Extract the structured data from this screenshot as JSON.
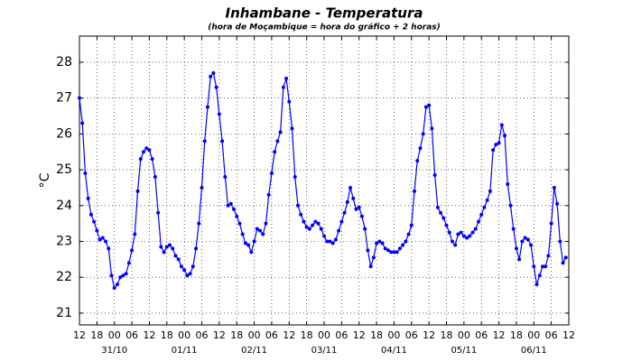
{
  "chart_data": {
    "type": "line",
    "title": "Inhambane - Temperatura",
    "subtitle": "(hora de Moçambique = hora do gráfico + 2 horas)",
    "y_label": "°C",
    "color": "#0000ff",
    "grid": true,
    "x": [
      0,
      1,
      2,
      3,
      4,
      5,
      6,
      7,
      8,
      9,
      10,
      11,
      12,
      13,
      14,
      15,
      16,
      17,
      18,
      19,
      20,
      21,
      22,
      23,
      24,
      25,
      26,
      27,
      28,
      29,
      30,
      31,
      32,
      33,
      34,
      35,
      36,
      37,
      38,
      39,
      40,
      41,
      42,
      43,
      44,
      45,
      46,
      47,
      48,
      49,
      50,
      51,
      52,
      53,
      54,
      55,
      56,
      57,
      58,
      59,
      60,
      61,
      62,
      63,
      64,
      65,
      66,
      67,
      68,
      69,
      70,
      71,
      72,
      73,
      74,
      75,
      76,
      77,
      78,
      79,
      80,
      81,
      82,
      83,
      84,
      85,
      86,
      87,
      88,
      89,
      90,
      91,
      92,
      93,
      94,
      95,
      96,
      97,
      98,
      99,
      100,
      101,
      102,
      103,
      104,
      105,
      106,
      107,
      108,
      109,
      110,
      111,
      112,
      113,
      114,
      115,
      116,
      117,
      118,
      119,
      120,
      121,
      122,
      123,
      124,
      125,
      126,
      127,
      128,
      129,
      130,
      131,
      132,
      133,
      134,
      135,
      136,
      137,
      138,
      139,
      140,
      141,
      142,
      143,
      144,
      145,
      146,
      147,
      148,
      149,
      150,
      151,
      152,
      153,
      154,
      155,
      156,
      157,
      158,
      159,
      160,
      161,
      162,
      163,
      164,
      165,
      166,
      167
    ],
    "values": [
      27.0,
      26.3,
      24.9,
      24.2,
      23.75,
      23.55,
      23.3,
      23.05,
      23.1,
      23.0,
      22.8,
      22.05,
      21.7,
      21.8,
      22.0,
      22.05,
      22.1,
      22.4,
      22.75,
      23.2,
      24.4,
      25.3,
      25.5,
      25.6,
      25.55,
      25.3,
      24.8,
      23.8,
      22.85,
      22.7,
      22.85,
      22.9,
      22.8,
      22.6,
      22.5,
      22.3,
      22.2,
      22.05,
      22.1,
      22.3,
      22.8,
      23.5,
      24.5,
      25.8,
      26.75,
      27.6,
      27.7,
      27.3,
      26.55,
      25.8,
      24.8,
      24.0,
      24.05,
      23.9,
      23.7,
      23.5,
      23.2,
      22.95,
      22.9,
      22.7,
      23.0,
      23.35,
      23.3,
      23.2,
      23.5,
      24.3,
      24.9,
      25.5,
      25.8,
      26.05,
      27.3,
      27.55,
      26.9,
      26.15,
      24.8,
      24.0,
      23.75,
      23.55,
      23.4,
      23.35,
      23.45,
      23.55,
      23.5,
      23.35,
      23.15,
      23.0,
      23.0,
      22.95,
      23.05,
      23.3,
      23.55,
      23.8,
      24.1,
      24.5,
      24.2,
      23.9,
      23.95,
      23.7,
      23.35,
      22.75,
      22.3,
      22.55,
      22.95,
      23.0,
      22.95,
      22.8,
      22.75,
      22.7,
      22.7,
      22.7,
      22.8,
      22.9,
      23.0,
      23.2,
      23.45,
      24.4,
      25.25,
      25.6,
      26.0,
      26.75,
      26.8,
      26.15,
      24.85,
      23.95,
      23.8,
      23.65,
      23.45,
      23.25,
      23.0,
      22.9,
      23.2,
      23.25,
      23.15,
      23.1,
      23.15,
      23.25,
      23.35,
      23.55,
      23.75,
      23.95,
      24.15,
      24.4,
      25.55,
      25.7,
      25.75,
      26.25,
      25.95,
      24.6,
      24.0,
      23.35,
      22.8,
      22.5,
      23.0,
      23.1,
      23.05,
      22.9,
      22.3,
      21.8,
      22.05,
      22.3,
      22.3,
      22.6,
      23.5,
      24.5,
      24.05,
      23.0,
      22.4,
      22.55
    ],
    "xlim": [
      0,
      168
    ],
    "xticks": [
      {
        "value": 0,
        "label": "12"
      },
      {
        "value": 6,
        "label": "18"
      },
      {
        "value": 12,
        "label": "00"
      },
      {
        "value": 18,
        "label": "06"
      },
      {
        "value": 24,
        "label": "12"
      },
      {
        "value": 30,
        "label": "18"
      },
      {
        "value": 36,
        "label": "00"
      },
      {
        "value": 42,
        "label": "06"
      },
      {
        "value": 48,
        "label": "12"
      },
      {
        "value": 54,
        "label": "18"
      },
      {
        "value": 60,
        "label": "00"
      },
      {
        "value": 66,
        "label": "06"
      },
      {
        "value": 72,
        "label": "12"
      },
      {
        "value": 78,
        "label": "18"
      },
      {
        "value": 84,
        "label": "00"
      },
      {
        "value": 90,
        "label": "06"
      },
      {
        "value": 96,
        "label": "12"
      },
      {
        "value": 102,
        "label": "18"
      },
      {
        "value": 108,
        "label": "00"
      },
      {
        "value": 114,
        "label": "06"
      },
      {
        "value": 120,
        "label": "12"
      },
      {
        "value": 126,
        "label": "18"
      },
      {
        "value": 132,
        "label": "00"
      },
      {
        "value": 138,
        "label": "06"
      },
      {
        "value": 144,
        "label": "12"
      },
      {
        "value": 150,
        "label": "18"
      },
      {
        "value": 156,
        "label": "00"
      },
      {
        "value": 162,
        "label": "06"
      },
      {
        "value": 168,
        "label": "12"
      }
    ],
    "date_ticks": [
      {
        "value": 12,
        "label": "31/10"
      },
      {
        "value": 36,
        "label": "01/11"
      },
      {
        "value": 60,
        "label": "02/11"
      },
      {
        "value": 84,
        "label": "03/11"
      },
      {
        "value": 108,
        "label": "04/11"
      },
      {
        "value": 132,
        "label": "05/11"
      },
      {
        "value": 156,
        "label": "06/11"
      }
    ],
    "ylim": [
      20.67,
      28.73
    ],
    "yticks": [
      21,
      22,
      23,
      24,
      25,
      26,
      27,
      28
    ]
  }
}
